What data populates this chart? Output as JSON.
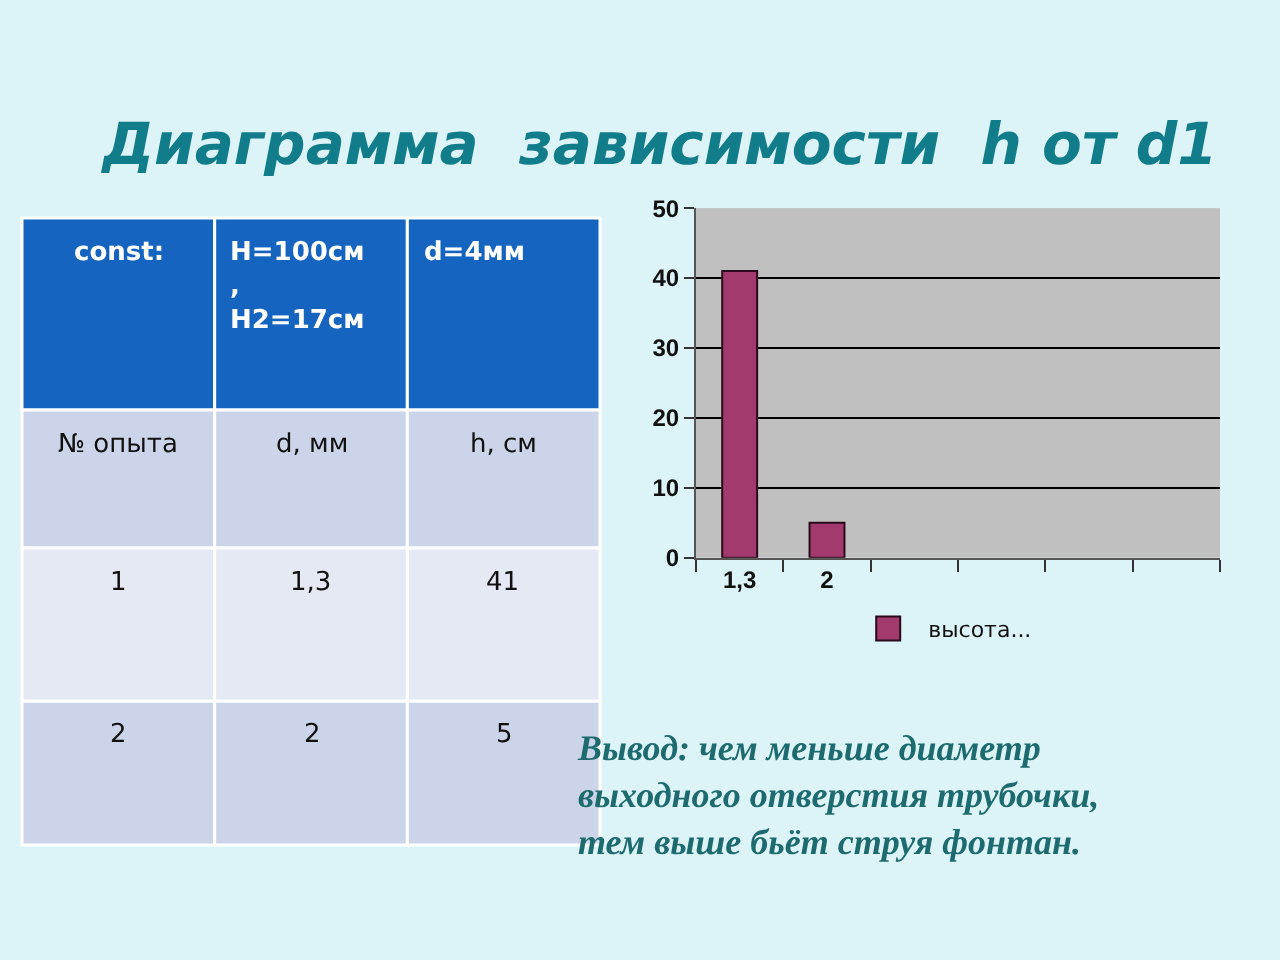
{
  "chart_data": [
    {
      "type": "other",
      "annotations": [
        "const:",
        "H=100см\n,\nH2=17см",
        "d=4мм",
        "№ опыта",
        "d, мм",
        "h, см",
        "1",
        "1,3",
        "41",
        "2",
        "2",
        "5"
      ]
    },
    {
      "type": "bar",
      "title": "Диаграмма  зависимости  h от d1",
      "categories": [
        "1,3",
        "2",
        null,
        null,
        null,
        null
      ],
      "series": [
        {
          "name": "высота...",
          "color": "#a33a6e",
          "values": [
            41,
            5,
            null,
            null,
            null,
            null
          ]
        }
      ],
      "ylim": [
        0,
        50
      ],
      "yticks": [
        0,
        10,
        20,
        30,
        40,
        50
      ],
      "grid": "y",
      "legend": "bottom",
      "annotations": [
        "Вывод: чем меньше диаметр\nвыходного отверстия трубочки,\nтем выше бьёт струя фонтан."
      ]
    }
  ]
}
